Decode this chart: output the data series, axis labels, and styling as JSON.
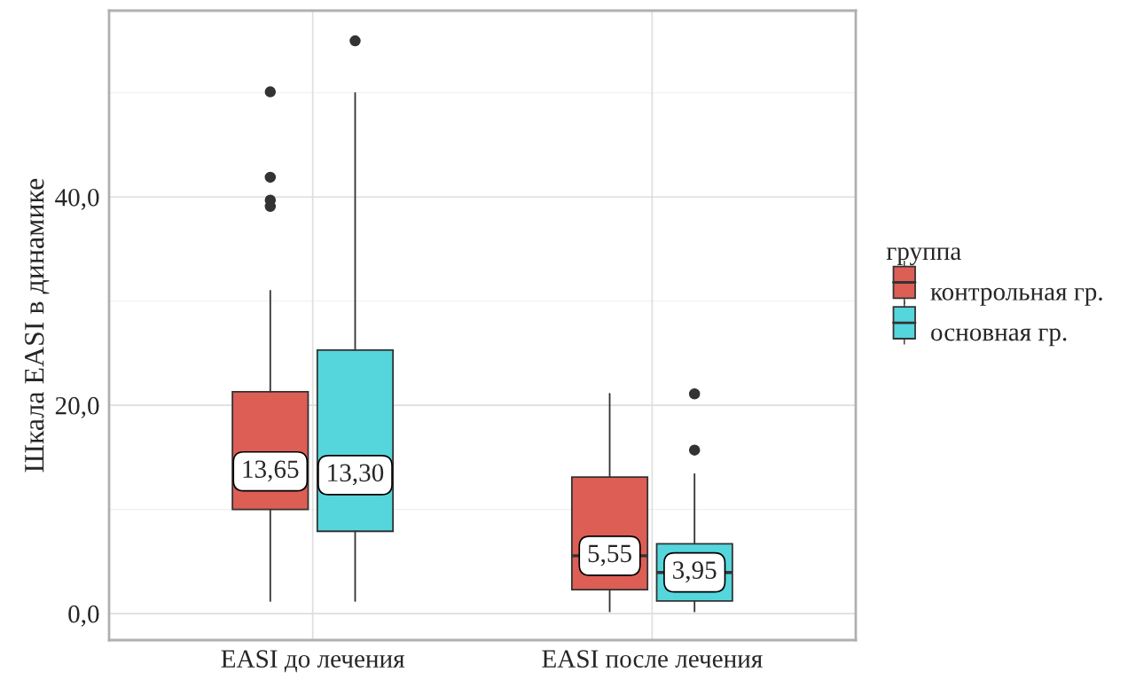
{
  "chart_data": {
    "type": "box",
    "ylabel": "Шкала EASI в динамике",
    "legend_title": "группа",
    "categories": [
      "EASI до лечения",
      "EASI после лечения"
    ],
    "series": [
      {
        "name": "контрольная гр.",
        "color": "#dd5e55",
        "boxes": [
          {
            "low": 1.2,
            "q1": 10.0,
            "median": 13.65,
            "q3": 21.3,
            "high": 31.0,
            "outliers": [
              50.1,
              41.9,
              39.7,
              39.1
            ]
          },
          {
            "low": 0.2,
            "q1": 2.3,
            "median": 5.55,
            "q3": 13.1,
            "high": 21.1
          }
        ],
        "value_labels": [
          "13,65",
          "5,55"
        ]
      },
      {
        "name": "основная гр.",
        "color": "#55d6dc",
        "boxes": [
          {
            "low": 1.2,
            "q1": 7.9,
            "median": 13.3,
            "q3": 25.3,
            "high": 50.0,
            "outliers": [
              55.0
            ]
          },
          {
            "low": 0.2,
            "q1": 1.2,
            "median": 3.95,
            "q3": 6.7,
            "high": 13.4,
            "outliers": [
              21.1,
              15.7
            ]
          }
        ],
        "value_labels": [
          "13,30",
          "3,95"
        ]
      }
    ],
    "ylim": [
      -2.55,
      57.9
    ],
    "yticks": [
      {
        "value": 0,
        "label": "0,0"
      },
      {
        "value": 20,
        "label": "20,0"
      },
      {
        "value": 40,
        "label": "40,0"
      }
    ],
    "grid": true,
    "legend": "right"
  }
}
